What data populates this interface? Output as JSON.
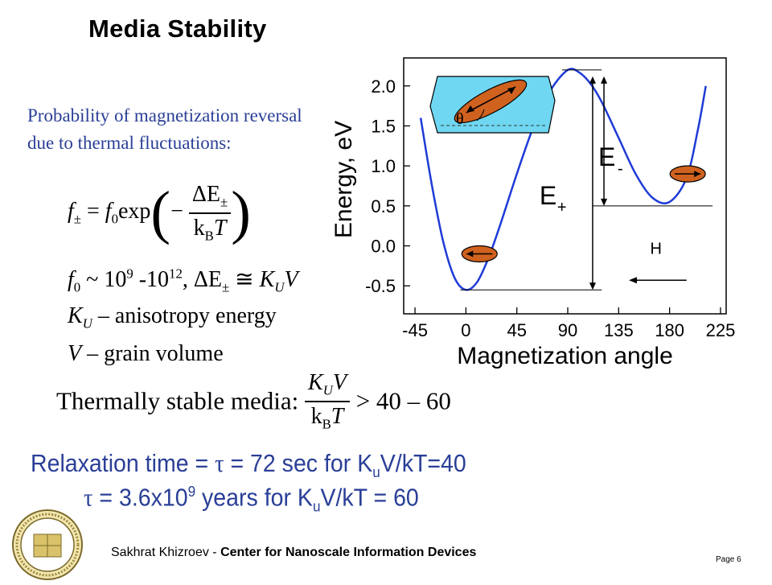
{
  "slide": {
    "title": "Media Stability",
    "intro": "Probability of magnetization reversal due to thermal fluctuations:",
    "eq1": {
      "lhs_f": "f",
      "lhs_sub": "±",
      "equals": " = ",
      "f0": "f",
      "f0_sub": "0",
      "exp": "exp",
      "minus": "−",
      "num": "ΔE",
      "num_sub": "±",
      "den_k": "k",
      "den_sub": "B",
      "den_T": "T"
    },
    "eq2": {
      "f": "f",
      "f_sub": "0",
      "approx": " ~ 10",
      "sup1": "9",
      "range": " -10",
      "sup2": "12",
      "comma": ", ΔE",
      "de_sub": "±",
      "cong": " ≅ ",
      "K": "K",
      "K_sub": "U",
      "V": "V"
    },
    "eq3": {
      "K": "K",
      "K_sub": "U",
      "text": " – anisotropy energy"
    },
    "eq4": {
      "V": "V",
      "text": " – grain volume"
    },
    "stable": {
      "label": "Thermally  stable media:",
      "num_K": "K",
      "num_sub": "U",
      "num_V": "V",
      "den_k": "k",
      "den_sub": "B",
      "den_T": "T",
      "rhs": " > 40 – 60"
    },
    "relax1": {
      "a": "Relaxation time = ",
      "tau": "τ",
      "b": " = 72 sec for K",
      "sub": "u",
      "c": "V/kT=40"
    },
    "relax2": {
      "tau": "τ",
      "a": " = 3.6x10",
      "sup": "9",
      "b": " years for K",
      "sub": "u",
      "c": "V/kT = 60"
    },
    "footer": {
      "author": "Sakhrat Khizroev - ",
      "center": "Center for Nanoscale Information Devices",
      "page": "Page 6"
    }
  },
  "chart_data": {
    "type": "line",
    "xlabel": "Magnetization angle",
    "ylabel": "Energy, eV",
    "x_ticks": [
      -45,
      0,
      45,
      90,
      135,
      180,
      225
    ],
    "y_ticks": [
      -0.5,
      0.0,
      0.5,
      1.0,
      1.5,
      2.0
    ],
    "y_tick_labels": [
      "-0.5",
      "0.0",
      "0.5",
      "1.0",
      "1.5",
      "2.0"
    ],
    "xlim": [
      -55,
      230
    ],
    "ylim": [
      -0.85,
      2.35
    ],
    "series": [
      {
        "x": [
          -40,
          -30,
          -20,
          -10,
          0,
          10,
          20,
          30,
          45,
          60,
          75,
          90,
          100,
          110,
          120,
          135,
          150,
          165,
          180,
          195,
          205,
          212
        ],
        "y": [
          1.6,
          0.75,
          0.05,
          -0.4,
          -0.55,
          -0.45,
          -0.15,
          0.25,
          0.9,
          1.5,
          1.95,
          2.2,
          2.17,
          2.03,
          1.8,
          1.35,
          0.9,
          0.6,
          0.55,
          0.85,
          1.45,
          2.0
        ]
      }
    ],
    "annotations": {
      "e_minus_label": "E",
      "e_minus_sub": "-",
      "e_plus_label": "E",
      "e_plus_sub": "+",
      "field_label": "H",
      "theta_label": "θ",
      "e_max": 2.2,
      "e_min": -0.55,
      "e_local_min": 0.5
    },
    "colors": {
      "curve": "#1f3bd6",
      "grain": "#d0621f",
      "inset": "#6fd7f2"
    }
  }
}
